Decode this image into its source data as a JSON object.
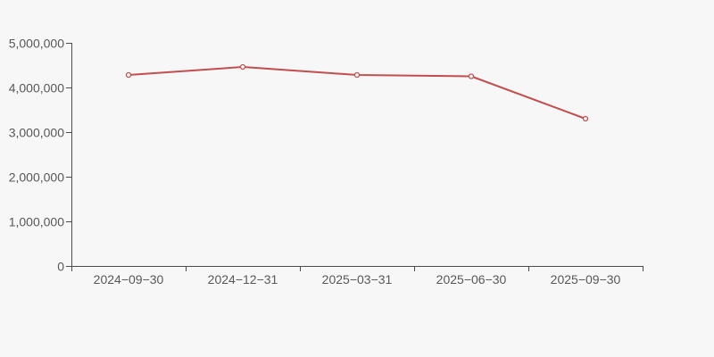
{
  "page": {
    "background_color": "#f7f7f7"
  },
  "chart_data": {
    "type": "line",
    "title": "",
    "xlabel": "",
    "ylabel": "",
    "categories": [
      "2024−09−30",
      "2024−12−31",
      "2025−03−31",
      "2025−06−30",
      "2025−09−30"
    ],
    "series": [
      {
        "name": "value",
        "values": [
          4280000,
          4460000,
          4280000,
          4250000,
          3300000
        ],
        "color": "#c14f4f",
        "marker": "open-circle",
        "marker_fill": "#ffffff"
      }
    ],
    "ylim": [
      0,
      5000000
    ],
    "ytick_values": [
      0,
      1000000,
      2000000,
      3000000,
      4000000,
      5000000
    ],
    "ytick_labels": [
      "0",
      "1,000,000",
      "2,000,000",
      "3,000,000",
      "4,000,000",
      "5,000,000"
    ],
    "grid": false,
    "legend_position": "none",
    "axis_color": "#4c4c4c",
    "label_color": "#585858",
    "label_font_size": 14
  }
}
